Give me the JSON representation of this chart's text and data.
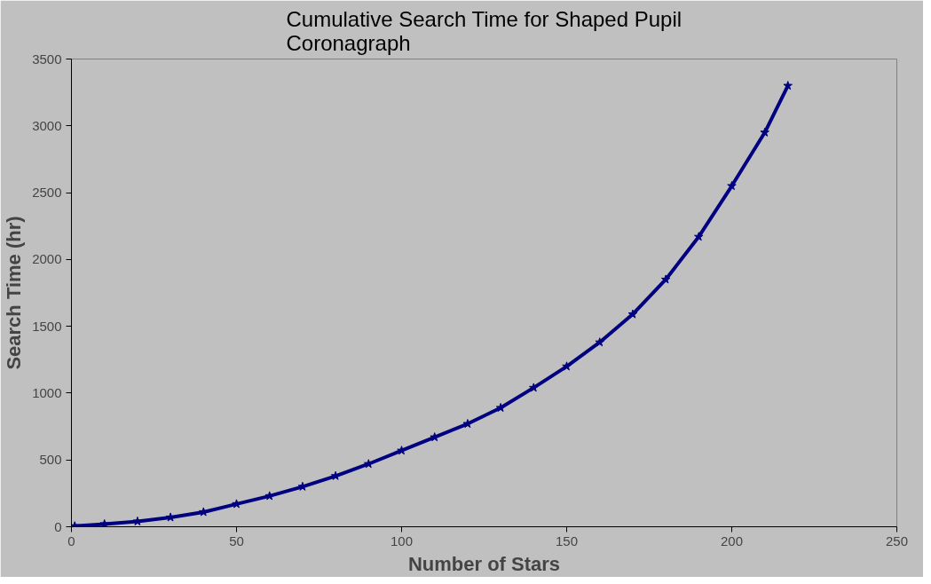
{
  "chart_data": {
    "type": "line",
    "title": "Cumulative Search Time for Shaped Pupil Coronagraph",
    "xlabel": "Number of Stars",
    "ylabel": "Search Time (hr)",
    "x": [
      1,
      10,
      20,
      30,
      40,
      50,
      60,
      70,
      80,
      90,
      100,
      110,
      120,
      130,
      140,
      150,
      160,
      170,
      180,
      190,
      200,
      210,
      217
    ],
    "series": [
      {
        "color": "#000080",
        "values": [
          5,
          20,
          40,
          70,
          110,
          170,
          230,
          300,
          380,
          470,
          570,
          670,
          770,
          890,
          1040,
          1200,
          1380,
          1590,
          1850,
          2170,
          2550,
          2950,
          3300
        ]
      }
    ],
    "xlim": [
      0,
      250
    ],
    "xticks": [
      0,
      50,
      100,
      150,
      200,
      250
    ],
    "ylim": [
      0,
      3500
    ],
    "yticks": [
      0,
      500,
      1000,
      1500,
      2000,
      2500,
      3000,
      3500
    ],
    "grid": false,
    "marker": "star",
    "line_style": "solid"
  }
}
